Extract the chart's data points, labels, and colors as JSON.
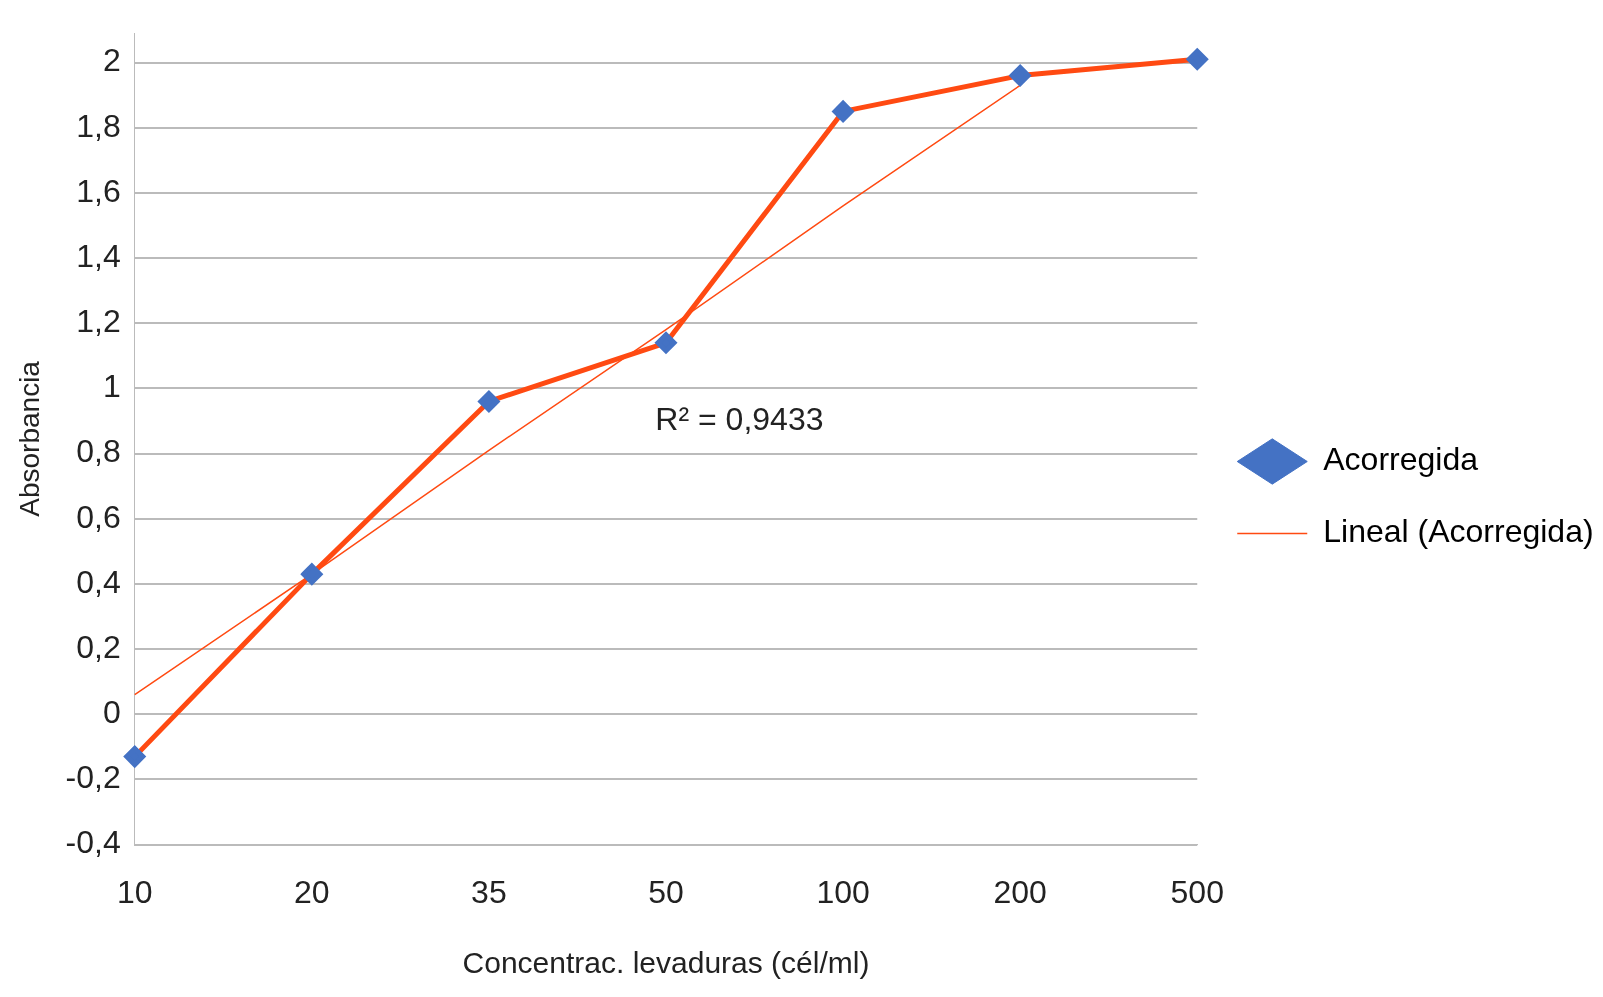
{
  "chart_data": {
    "type": "line",
    "xlabel": "Concentrac. levaduras (cél/ml)",
    "ylabel": "Absorbancia",
    "categories": [
      "10",
      "20",
      "35",
      "50",
      "100",
      "200",
      "500"
    ],
    "series": [
      {
        "name": "Acorregida",
        "color": "#ff4a12",
        "values": [
          -0.13,
          0.43,
          0.96,
          1.14,
          1.85,
          1.96,
          2.01
        ],
        "marker": "diamond"
      },
      {
        "name": "Lineal (Acorregida)",
        "color": "#ff4a12",
        "values": [
          0.06,
          0.43,
          0.81,
          1.18,
          1.56,
          1.93,
          null
        ],
        "marker": "none"
      }
    ],
    "ylim": [
      -0.4,
      2.09
    ],
    "yticks": [
      {
        "value": -0.4,
        "label": "-0,4"
      },
      {
        "value": -0.2,
        "label": "-0,2"
      },
      0,
      {
        "value": 0.2,
        "label": "0,2"
      },
      {
        "value": 0.4,
        "label": "0,4"
      },
      {
        "value": 0.6,
        "label": "0,6"
      },
      {
        "value": 0.8,
        "label": "0,8"
      },
      1,
      {
        "value": 1.2,
        "label": "1,2"
      },
      {
        "value": 1.4,
        "label": "1,4"
      },
      {
        "value": 1.6,
        "label": "1,6"
      },
      {
        "value": 1.8,
        "label": "1,8"
      },
      2
    ],
    "annotations": [
      "R² = 0,9433"
    ],
    "grid": "y",
    "legend": "right"
  }
}
